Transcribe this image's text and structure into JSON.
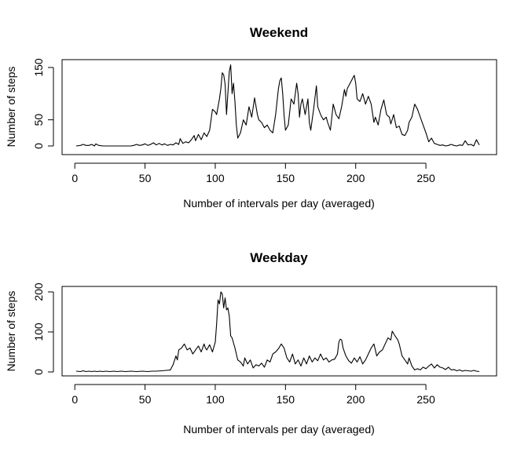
{
  "chart_data": [
    {
      "type": "line",
      "title": "Weekend",
      "xlabel": "Number of intervals per day (averaged)",
      "ylabel": "Number of steps",
      "xlim": [
        1,
        288
      ],
      "ylim": [
        0,
        150
      ],
      "xticks": [
        0,
        50,
        100,
        150,
        200,
        250
      ],
      "yticks": [
        0,
        50,
        150
      ],
      "grid": false,
      "points": [
        [
          1,
          0
        ],
        [
          4,
          1
        ],
        [
          6,
          3
        ],
        [
          8,
          1
        ],
        [
          10,
          1
        ],
        [
          12,
          3
        ],
        [
          14,
          0
        ],
        [
          15,
          4
        ],
        [
          17,
          1
        ],
        [
          20,
          0
        ],
        [
          25,
          0
        ],
        [
          30,
          0
        ],
        [
          35,
          0
        ],
        [
          40,
          0
        ],
        [
          42,
          1
        ],
        [
          44,
          3
        ],
        [
          46,
          1
        ],
        [
          48,
          2
        ],
        [
          50,
          4
        ],
        [
          52,
          1
        ],
        [
          54,
          3
        ],
        [
          56,
          6
        ],
        [
          58,
          2
        ],
        [
          60,
          5
        ],
        [
          62,
          2
        ],
        [
          64,
          4
        ],
        [
          66,
          1
        ],
        [
          68,
          3
        ],
        [
          70,
          2
        ],
        [
          72,
          6
        ],
        [
          74,
          3
        ],
        [
          75,
          14
        ],
        [
          77,
          5
        ],
        [
          79,
          8
        ],
        [
          81,
          6
        ],
        [
          83,
          12
        ],
        [
          85,
          20
        ],
        [
          86,
          10
        ],
        [
          88,
          22
        ],
        [
          90,
          12
        ],
        [
          92,
          25
        ],
        [
          94,
          18
        ],
        [
          96,
          30
        ],
        [
          97,
          50
        ],
        [
          98,
          70
        ],
        [
          100,
          65
        ],
        [
          101,
          60
        ],
        [
          103,
          90
        ],
        [
          104,
          110
        ],
        [
          105,
          140
        ],
        [
          106,
          136
        ],
        [
          107,
          118
        ],
        [
          108,
          60
        ],
        [
          109,
          100
        ],
        [
          110,
          142
        ],
        [
          111,
          155
        ],
        [
          112,
          100
        ],
        [
          113,
          120
        ],
        [
          114,
          85
        ],
        [
          115,
          40
        ],
        [
          116,
          15
        ],
        [
          118,
          25
        ],
        [
          120,
          50
        ],
        [
          122,
          40
        ],
        [
          124,
          75
        ],
        [
          126,
          55
        ],
        [
          128,
          92
        ],
        [
          130,
          60
        ],
        [
          131,
          50
        ],
        [
          133,
          45
        ],
        [
          135,
          35
        ],
        [
          137,
          40
        ],
        [
          139,
          30
        ],
        [
          141,
          25
        ],
        [
          143,
          60
        ],
        [
          145,
          110
        ],
        [
          146,
          125
        ],
        [
          147,
          130
        ],
        [
          148,
          100
        ],
        [
          149,
          60
        ],
        [
          150,
          30
        ],
        [
          152,
          40
        ],
        [
          154,
          90
        ],
        [
          156,
          80
        ],
        [
          158,
          120
        ],
        [
          159,
          100
        ],
        [
          160,
          55
        ],
        [
          161,
          80
        ],
        [
          162,
          90
        ],
        [
          164,
          60
        ],
        [
          166,
          90
        ],
        [
          167,
          45
        ],
        [
          168,
          30
        ],
        [
          170,
          70
        ],
        [
          172,
          115
        ],
        [
          173,
          75
        ],
        [
          175,
          60
        ],
        [
          177,
          50
        ],
        [
          179,
          55
        ],
        [
          180,
          45
        ],
        [
          182,
          30
        ],
        [
          184,
          80
        ],
        [
          186,
          60
        ],
        [
          188,
          52
        ],
        [
          190,
          75
        ],
        [
          192,
          108
        ],
        [
          193,
          95
        ],
        [
          194,
          110
        ],
        [
          196,
          120
        ],
        [
          198,
          130
        ],
        [
          199,
          135
        ],
        [
          200,
          120
        ],
        [
          201,
          90
        ],
        [
          203,
          85
        ],
        [
          205,
          100
        ],
        [
          207,
          80
        ],
        [
          209,
          95
        ],
        [
          211,
          80
        ],
        [
          213,
          45
        ],
        [
          214,
          55
        ],
        [
          216,
          40
        ],
        [
          218,
          70
        ],
        [
          220,
          88
        ],
        [
          222,
          60
        ],
        [
          224,
          55
        ],
        [
          225,
          42
        ],
        [
          227,
          60
        ],
        [
          229,
          35
        ],
        [
          231,
          38
        ],
        [
          233,
          22
        ],
        [
          235,
          20
        ],
        [
          237,
          30
        ],
        [
          238,
          45
        ],
        [
          240,
          55
        ],
        [
          242,
          80
        ],
        [
          244,
          70
        ],
        [
          246,
          55
        ],
        [
          248,
          40
        ],
        [
          250,
          25
        ],
        [
          252,
          8
        ],
        [
          254,
          15
        ],
        [
          256,
          5
        ],
        [
          258,
          3
        ],
        [
          260,
          1
        ],
        [
          262,
          2
        ],
        [
          264,
          0
        ],
        [
          266,
          1
        ],
        [
          268,
          3
        ],
        [
          270,
          1
        ],
        [
          272,
          0
        ],
        [
          274,
          2
        ],
        [
          276,
          1
        ],
        [
          278,
          10
        ],
        [
          280,
          2
        ],
        [
          282,
          3
        ],
        [
          284,
          0
        ],
        [
          286,
          12
        ],
        [
          288,
          2
        ]
      ]
    },
    {
      "type": "line",
      "title": "Weekday",
      "xlabel": "Number of intervals per day (averaged)",
      "ylabel": "Number of steps",
      "xlim": [
        1,
        288
      ],
      "ylim": [
        0,
        200
      ],
      "xticks": [
        0,
        50,
        100,
        150,
        200,
        250
      ],
      "yticks": [
        0,
        100,
        200
      ],
      "grid": false,
      "points": [
        [
          1,
          2
        ],
        [
          4,
          1
        ],
        [
          6,
          3
        ],
        [
          8,
          1
        ],
        [
          10,
          2
        ],
        [
          12,
          1
        ],
        [
          14,
          2
        ],
        [
          16,
          1
        ],
        [
          18,
          2
        ],
        [
          20,
          1
        ],
        [
          22,
          2
        ],
        [
          25,
          1
        ],
        [
          28,
          2
        ],
        [
          30,
          1
        ],
        [
          33,
          2
        ],
        [
          36,
          1
        ],
        [
          40,
          2
        ],
        [
          44,
          1
        ],
        [
          48,
          2
        ],
        [
          52,
          1
        ],
        [
          55,
          2
        ],
        [
          58,
          2
        ],
        [
          62,
          3
        ],
        [
          65,
          4
        ],
        [
          68,
          5
        ],
        [
          70,
          18
        ],
        [
          72,
          40
        ],
        [
          73,
          30
        ],
        [
          74,
          55
        ],
        [
          76,
          60
        ],
        [
          78,
          70
        ],
        [
          80,
          55
        ],
        [
          82,
          60
        ],
        [
          84,
          45
        ],
        [
          86,
          55
        ],
        [
          88,
          65
        ],
        [
          90,
          50
        ],
        [
          92,
          70
        ],
        [
          93,
          60
        ],
        [
          94,
          55
        ],
        [
          96,
          68
        ],
        [
          98,
          50
        ],
        [
          100,
          75
        ],
        [
          101,
          120
        ],
        [
          102,
          180
        ],
        [
          103,
          170
        ],
        [
          104,
          200
        ],
        [
          105,
          195
        ],
        [
          106,
          160
        ],
        [
          107,
          185
        ],
        [
          108,
          155
        ],
        [
          109,
          160
        ],
        [
          110,
          140
        ],
        [
          111,
          90
        ],
        [
          112,
          85
        ],
        [
          114,
          60
        ],
        [
          116,
          30
        ],
        [
          118,
          25
        ],
        [
          120,
          15
        ],
        [
          121,
          35
        ],
        [
          123,
          20
        ],
        [
          125,
          30
        ],
        [
          127,
          10
        ],
        [
          129,
          18
        ],
        [
          131,
          15
        ],
        [
          133,
          22
        ],
        [
          135,
          12
        ],
        [
          137,
          30
        ],
        [
          139,
          25
        ],
        [
          141,
          45
        ],
        [
          143,
          50
        ],
        [
          145,
          58
        ],
        [
          147,
          70
        ],
        [
          149,
          60
        ],
        [
          151,
          35
        ],
        [
          153,
          25
        ],
        [
          155,
          45
        ],
        [
          157,
          20
        ],
        [
          159,
          30
        ],
        [
          161,
          15
        ],
        [
          163,
          35
        ],
        [
          165,
          20
        ],
        [
          167,
          40
        ],
        [
          169,
          25
        ],
        [
          171,
          35
        ],
        [
          173,
          28
        ],
        [
          175,
          45
        ],
        [
          177,
          30
        ],
        [
          179,
          35
        ],
        [
          181,
          25
        ],
        [
          183,
          30
        ],
        [
          185,
          32
        ],
        [
          187,
          45
        ],
        [
          188,
          75
        ],
        [
          189,
          82
        ],
        [
          190,
          80
        ],
        [
          191,
          60
        ],
        [
          193,
          40
        ],
        [
          195,
          28
        ],
        [
          197,
          22
        ],
        [
          199,
          35
        ],
        [
          201,
          25
        ],
        [
          203,
          38
        ],
        [
          205,
          20
        ],
        [
          207,
          30
        ],
        [
          209,
          45
        ],
        [
          211,
          60
        ],
        [
          213,
          70
        ],
        [
          215,
          40
        ],
        [
          217,
          50
        ],
        [
          219,
          55
        ],
        [
          221,
          70
        ],
        [
          223,
          85
        ],
        [
          225,
          80
        ],
        [
          226,
          102
        ],
        [
          228,
          90
        ],
        [
          230,
          80
        ],
        [
          231,
          70
        ],
        [
          233,
          40
        ],
        [
          235,
          30
        ],
        [
          237,
          20
        ],
        [
          238,
          35
        ],
        [
          240,
          15
        ],
        [
          242,
          5
        ],
        [
          244,
          8
        ],
        [
          246,
          5
        ],
        [
          248,
          12
        ],
        [
          250,
          8
        ],
        [
          252,
          15
        ],
        [
          254,
          20
        ],
        [
          256,
          10
        ],
        [
          258,
          18
        ],
        [
          260,
          12
        ],
        [
          262,
          10
        ],
        [
          264,
          6
        ],
        [
          266,
          12
        ],
        [
          268,
          5
        ],
        [
          270,
          6
        ],
        [
          272,
          3
        ],
        [
          274,
          5
        ],
        [
          276,
          2
        ],
        [
          278,
          4
        ],
        [
          280,
          3
        ],
        [
          282,
          2
        ],
        [
          284,
          4
        ],
        [
          286,
          2
        ],
        [
          288,
          1
        ]
      ]
    }
  ]
}
